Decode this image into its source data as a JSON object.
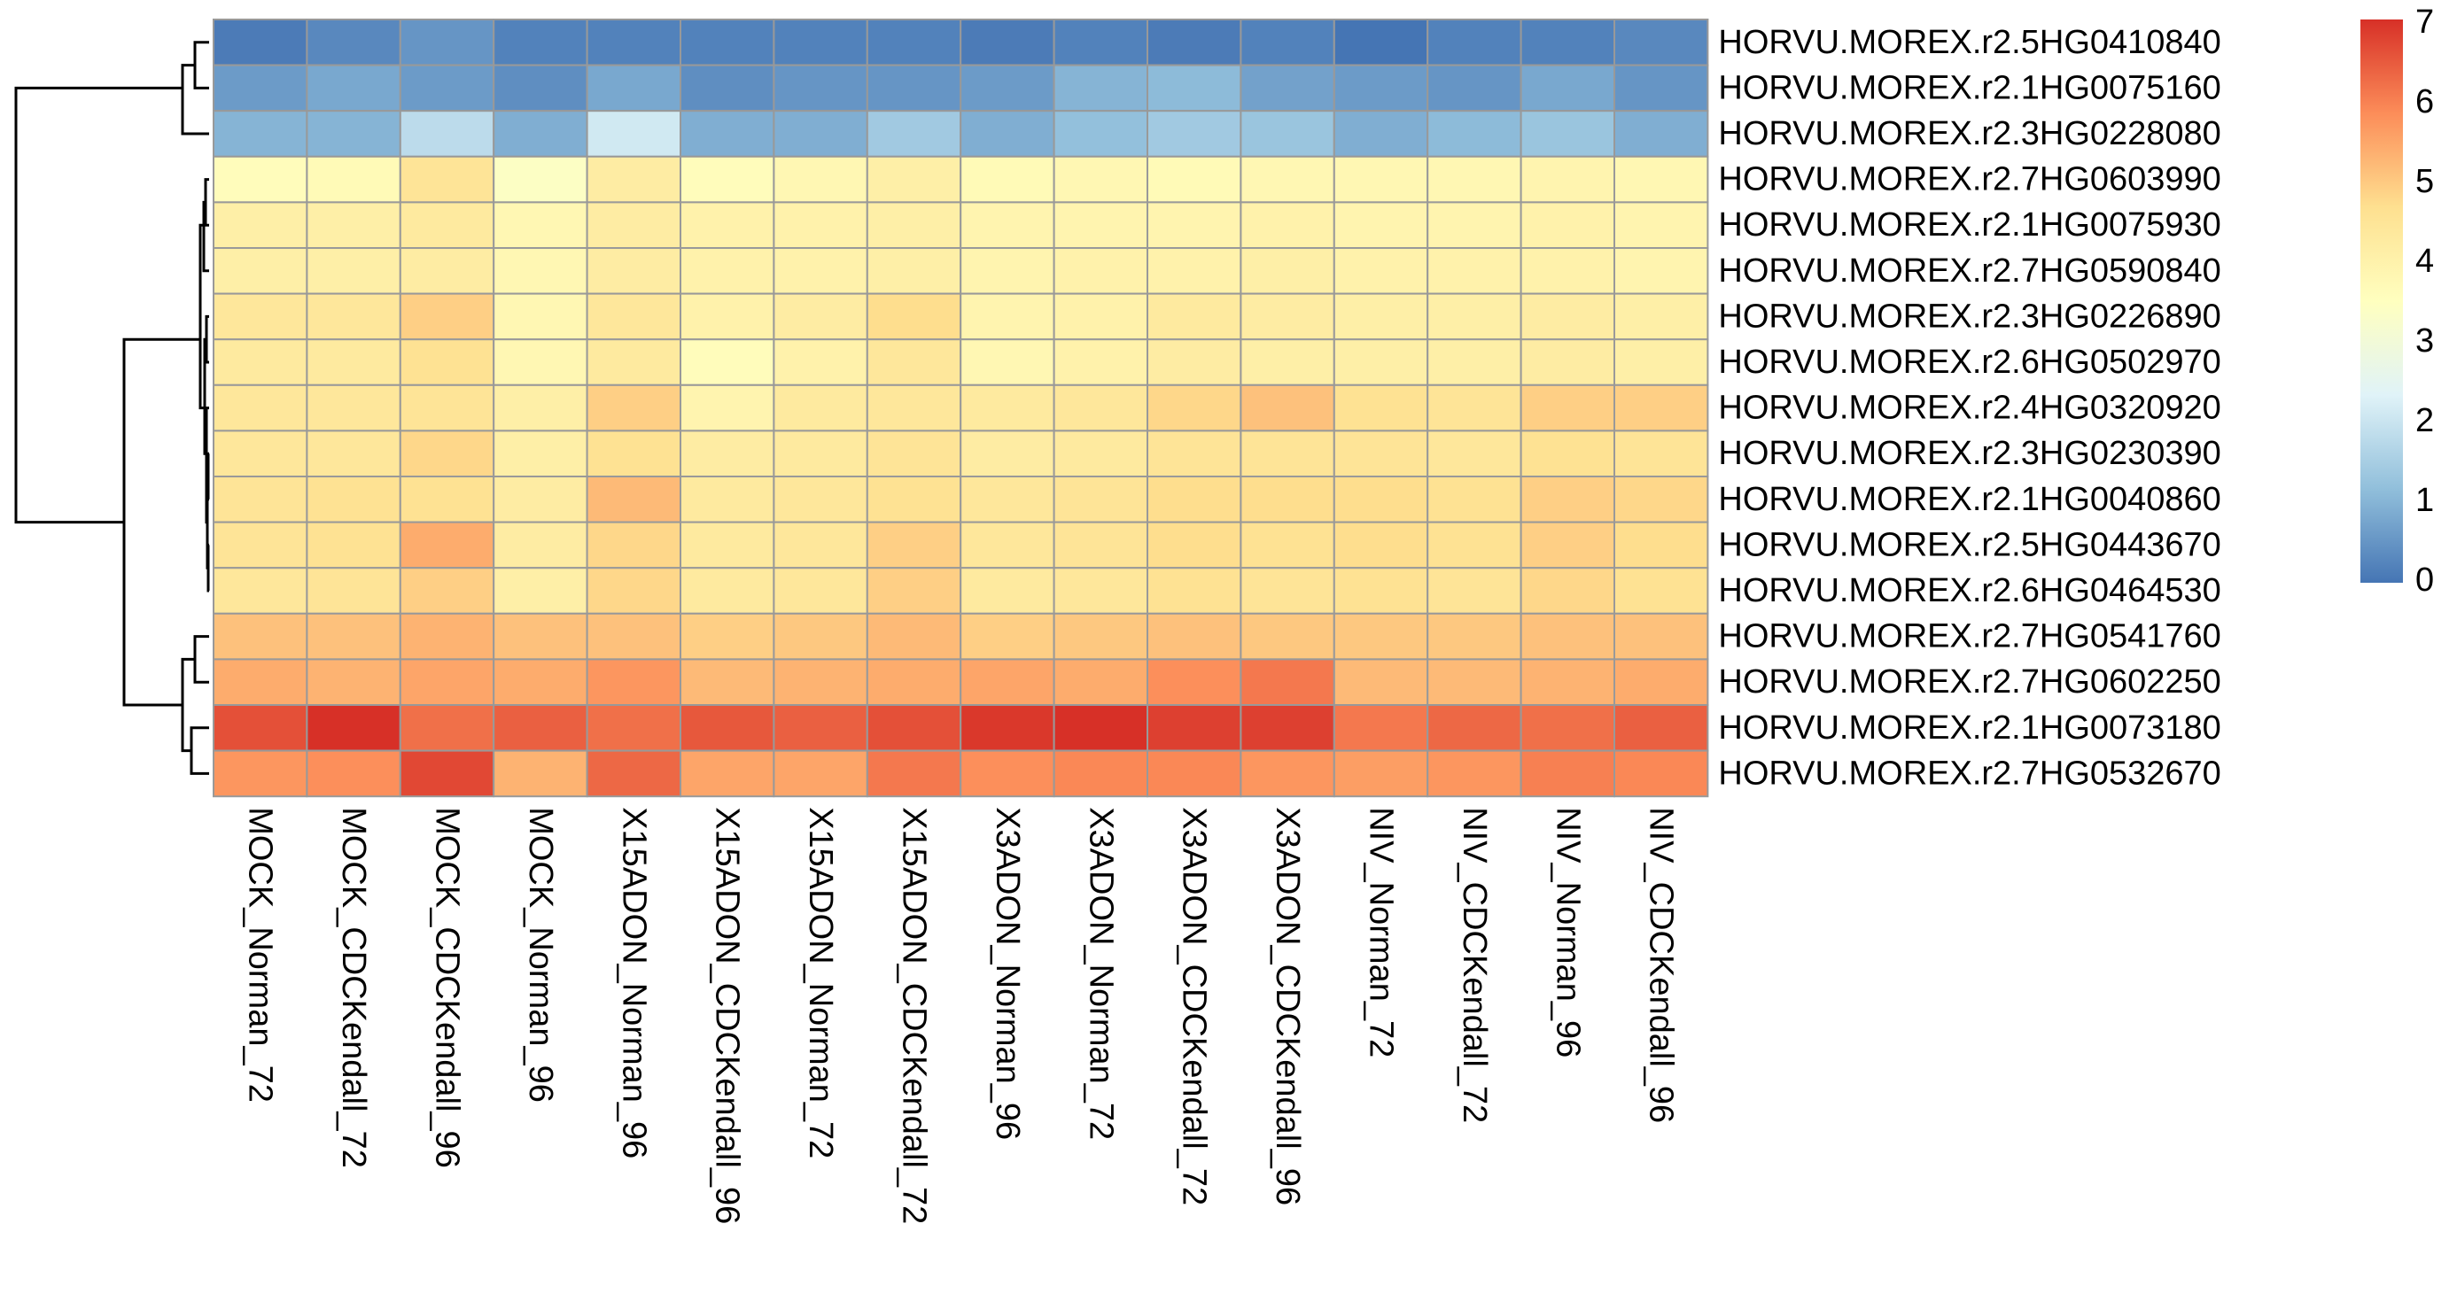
{
  "chart_data": {
    "type": "heatmap",
    "title": "",
    "xlabel": "",
    "ylabel": "",
    "columns": [
      "MOCK_Norman_72",
      "MOCK_CDCKendall_72",
      "MOCK_CDCKendall_96",
      "MOCK_Norman_96",
      "X15ADON_Norman_96",
      "X15ADON_CDCKendall_96",
      "X15ADON_Norman_72",
      "X15ADON_CDCKendall_72",
      "X3ADON_Norman_96",
      "X3ADON_Norman_72",
      "X3ADON_CDCKendall_72",
      "X3ADON_CDCKendall_96",
      "NIV_Norman_72",
      "NIV_CDCKendall_72",
      "NIV_Norman_96",
      "NIV_CDCKendall_96"
    ],
    "rows": [
      "HORVU.MOREX.r2.5HG0410840",
      "HORVU.MOREX.r2.1HG0075160",
      "HORVU.MOREX.r2.3HG0228080",
      "HORVU.MOREX.r2.7HG0603990",
      "HORVU.MOREX.r2.1HG0075930",
      "HORVU.MOREX.r2.7HG0590840",
      "HORVU.MOREX.r2.3HG0226890",
      "HORVU.MOREX.r2.6HG0502970",
      "HORVU.MOREX.r2.4HG0320920",
      "HORVU.MOREX.r2.3HG0230390",
      "HORVU.MOREX.r2.1HG0040860",
      "HORVU.MOREX.r2.5HG0443670",
      "HORVU.MOREX.r2.6HG0464530",
      "HORVU.MOREX.r2.7HG0541760",
      "HORVU.MOREX.r2.7HG0602250",
      "HORVU.MOREX.r2.1HG0073180",
      "HORVU.MOREX.r2.7HG0532670"
    ],
    "values": [
      [
        0.1,
        0.3,
        0.5,
        0.2,
        0.2,
        0.2,
        0.2,
        0.2,
        0.1,
        0.2,
        0.1,
        0.2,
        0.0,
        0.2,
        0.2,
        0.3
      ],
      [
        0.6,
        0.8,
        0.6,
        0.4,
        0.8,
        0.4,
        0.5,
        0.5,
        0.6,
        1.0,
        1.1,
        0.7,
        0.6,
        0.5,
        0.8,
        0.5
      ],
      [
        1.0,
        1.0,
        1.8,
        0.9,
        2.1,
        0.9,
        0.9,
        1.4,
        0.9,
        1.2,
        1.4,
        1.3,
        0.9,
        1.1,
        1.3,
        0.9
      ],
      [
        3.6,
        3.7,
        4.5,
        3.4,
        4.2,
        3.6,
        3.8,
        4.1,
        3.7,
        3.8,
        3.7,
        3.8,
        3.8,
        3.8,
        3.9,
        3.8
      ],
      [
        4.1,
        4.1,
        4.3,
        3.8,
        4.2,
        4.0,
        4.0,
        4.1,
        3.9,
        3.9,
        3.9,
        4.0,
        3.9,
        3.9,
        4.0,
        3.9
      ],
      [
        4.1,
        4.1,
        4.2,
        3.8,
        4.2,
        4.0,
        4.0,
        4.1,
        3.9,
        4.0,
        4.0,
        4.1,
        4.0,
        4.0,
        4.0,
        3.9
      ],
      [
        4.4,
        4.4,
        4.9,
        3.8,
        4.4,
        4.0,
        4.2,
        4.7,
        3.9,
        4.0,
        4.3,
        4.2,
        4.1,
        4.1,
        4.2,
        4.1
      ],
      [
        4.3,
        4.3,
        4.6,
        3.8,
        4.3,
        3.6,
        4.0,
        4.4,
        3.8,
        4.0,
        4.2,
        4.1,
        4.1,
        4.1,
        4.2,
        4.1
      ],
      [
        4.4,
        4.4,
        4.5,
        4.1,
        4.9,
        3.9,
        4.3,
        4.4,
        4.3,
        4.4,
        4.8,
        5.1,
        4.6,
        4.5,
        4.9,
        4.9
      ],
      [
        4.4,
        4.4,
        4.8,
        4.1,
        4.6,
        4.2,
        4.3,
        4.5,
        4.2,
        4.3,
        4.5,
        4.5,
        4.5,
        4.4,
        4.6,
        4.5
      ],
      [
        4.5,
        4.6,
        4.6,
        4.2,
        5.2,
        4.3,
        4.4,
        4.6,
        4.4,
        4.5,
        4.7,
        4.7,
        4.7,
        4.6,
        4.9,
        4.8
      ],
      [
        4.5,
        4.6,
        5.4,
        4.2,
        4.8,
        4.3,
        4.4,
        4.9,
        4.4,
        4.5,
        4.7,
        4.6,
        4.7,
        4.6,
        4.9,
        4.7
      ],
      [
        4.4,
        4.5,
        4.9,
        4.1,
        4.8,
        4.3,
        4.4,
        4.9,
        4.3,
        4.4,
        4.6,
        4.5,
        4.6,
        4.5,
        4.8,
        4.6
      ],
      [
        5.1,
        5.1,
        5.3,
        5.1,
        5.1,
        4.9,
        5.0,
        5.2,
        4.9,
        5.0,
        5.1,
        5.0,
        5.0,
        5.0,
        5.1,
        5.1
      ],
      [
        5.4,
        5.3,
        5.5,
        5.4,
        5.7,
        5.2,
        5.3,
        5.4,
        5.5,
        5.4,
        5.8,
        6.1,
        5.2,
        5.2,
        5.3,
        5.4
      ],
      [
        6.6,
        7.0,
        6.2,
        6.4,
        6.2,
        6.5,
        6.4,
        6.6,
        6.9,
        7.0,
        6.8,
        6.8,
        6.1,
        6.3,
        6.2,
        6.4
      ],
      [
        5.7,
        5.8,
        6.7,
        5.3,
        6.3,
        5.5,
        5.5,
        6.1,
        5.8,
        5.9,
        5.9,
        5.7,
        5.6,
        5.7,
        6.0,
        5.9
      ]
    ],
    "color_scale": {
      "min": 0,
      "max": 7,
      "ticks": [
        0,
        1,
        2,
        3,
        4,
        5,
        6,
        7
      ],
      "colors": [
        "#4575B4",
        "#91BFDB",
        "#E0F3F8",
        "#FFFFBF",
        "#FEE090",
        "#FC8D59",
        "#D73027"
      ]
    },
    "row_dendrogram": true,
    "legend_position": "right"
  }
}
